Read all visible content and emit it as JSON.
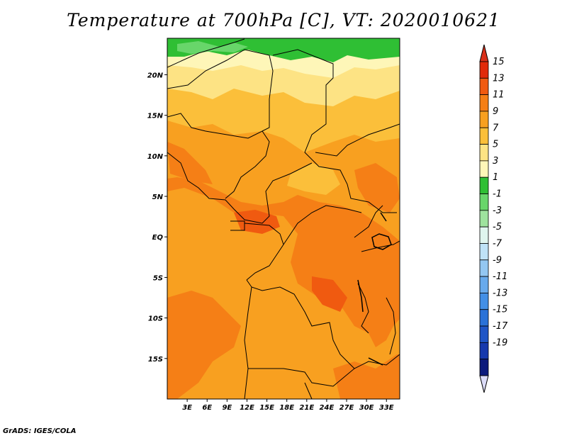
{
  "title": "Temperature at 700hPa [C], VT: 2020010621",
  "credit": "GrADS: IGES/COLA",
  "map": {
    "lon_range": [
      0,
      35
    ],
    "lat_range": [
      -20,
      24.5
    ],
    "lat_ticks": [
      {
        "value": 20,
        "label": "20N"
      },
      {
        "value": 15,
        "label": "15N"
      },
      {
        "value": 10,
        "label": "10N"
      },
      {
        "value": 5,
        "label": "5N"
      },
      {
        "value": 0,
        "label": "EQ"
      },
      {
        "value": -5,
        "label": "5S"
      },
      {
        "value": -10,
        "label": "10S"
      },
      {
        "value": -15,
        "label": "15S"
      }
    ],
    "lon_ticks": [
      {
        "value": 3,
        "label": "3E"
      },
      {
        "value": 6,
        "label": "6E"
      },
      {
        "value": 9,
        "label": "9E"
      },
      {
        "value": 12,
        "label": "12E"
      },
      {
        "value": 15,
        "label": "15E"
      },
      {
        "value": 18,
        "label": "18E"
      },
      {
        "value": 21,
        "label": "21E"
      },
      {
        "value": 24,
        "label": "24E"
      },
      {
        "value": 27,
        "label": "27E"
      },
      {
        "value": 30,
        "label": "30E"
      },
      {
        "value": 33,
        "label": "33E"
      }
    ]
  },
  "colorbar": {
    "labels": [
      "15",
      "13",
      "11",
      "9",
      "7",
      "5",
      "3",
      "1",
      "-1",
      "-3",
      "-5",
      "-7",
      "-9",
      "-11",
      "-13",
      "-15",
      "-17",
      "-19"
    ],
    "colors": [
      "#e12a0a",
      "#f05a10",
      "#f57f16",
      "#f8a020",
      "#fbbf3a",
      "#fde384",
      "#fef6b8",
      "#2fbf34",
      "#68d66a",
      "#9ee39e",
      "#dff5ee",
      "#bfe2f6",
      "#93c7f2",
      "#68aaec",
      "#438fe6",
      "#2a72d8",
      "#1f55c6",
      "#1639ad",
      "#0c1a7c"
    ],
    "top_arrow_color": "#d9301a",
    "bottom_arrow_color": "#dcdcf8"
  }
}
